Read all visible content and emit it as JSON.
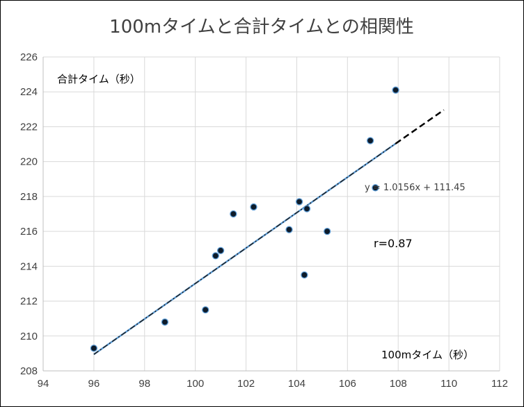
{
  "chart_data": {
    "type": "scatter",
    "title": "100mタイムと合計タイムとの相関性",
    "xlabel": "100mタイム（秒）",
    "ylabel": "合計タイム（秒）",
    "xlim": [
      94,
      112
    ],
    "ylim": [
      208,
      226
    ],
    "xticks": [
      94,
      96,
      98,
      100,
      102,
      104,
      106,
      108,
      110,
      112
    ],
    "yticks": [
      208,
      210,
      212,
      214,
      216,
      218,
      220,
      222,
      224,
      226
    ],
    "grid": true,
    "points": [
      {
        "x": 96.0,
        "y": 209.3
      },
      {
        "x": 98.8,
        "y": 210.8
      },
      {
        "x": 100.4,
        "y": 211.5
      },
      {
        "x": 100.8,
        "y": 214.6
      },
      {
        "x": 101.0,
        "y": 214.9
      },
      {
        "x": 101.5,
        "y": 217.0
      },
      {
        "x": 102.3,
        "y": 217.4
      },
      {
        "x": 103.7,
        "y": 216.1
      },
      {
        "x": 104.1,
        "y": 217.7
      },
      {
        "x": 104.3,
        "y": 213.5
      },
      {
        "x": 104.4,
        "y": 217.3
      },
      {
        "x": 105.2,
        "y": 216.0
      },
      {
        "x": 106.9,
        "y": 221.2
      },
      {
        "x": 107.1,
        "y": 218.5
      },
      {
        "x": 107.9,
        "y": 224.1
      }
    ],
    "trendline": {
      "slope": 1.0156,
      "intercept": 111.45,
      "x_start": 96.0,
      "x_fit_end": 107.9,
      "x_forecast_end": 109.8
    },
    "equation": "y = 1.0156x + 111.45",
    "correlation": "r=0.87",
    "colors": {
      "marker_fill": "#0d1b2a",
      "marker_edge": "#5b9bd5",
      "trend_fit": "#5b9bd5",
      "trend_forecast": "#000000",
      "grid": "#d9d9d9",
      "axis": "#bfbfbf"
    }
  }
}
